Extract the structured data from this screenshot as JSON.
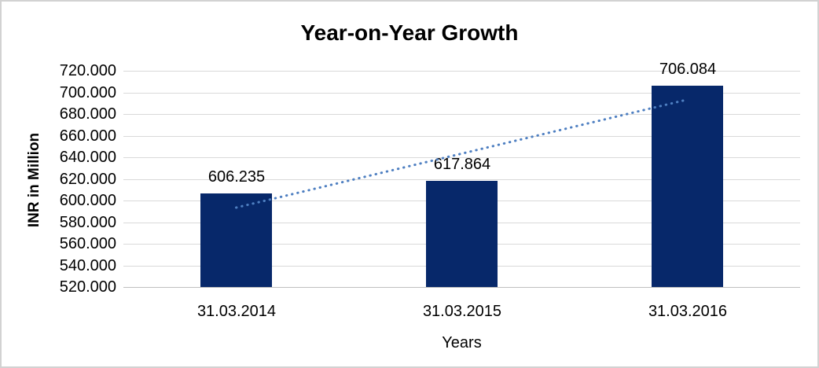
{
  "chart_data": {
    "type": "bar",
    "title": "Year-on-Year Growth",
    "xlabel": "Years",
    "ylabel": "INR in Million",
    "categories": [
      "31.03.2014",
      "31.03.2015",
      "31.03.2016"
    ],
    "values": [
      606.235,
      617.864,
      706.084
    ],
    "data_labels": [
      "606.235",
      "617.864",
      "706.084"
    ],
    "ylim": [
      520,
      720
    ],
    "ytick_step": 20,
    "ytick_labels": [
      "720.000",
      "700.000",
      "680.000",
      "660.000",
      "640.000",
      "620.000",
      "600.000",
      "580.000",
      "560.000",
      "540.000",
      "520.000"
    ],
    "grid": true,
    "legend": false,
    "trendline": {
      "type": "linear",
      "style": "dotted"
    },
    "colors": {
      "bar": "#07286A",
      "trendline": "#4E7FC1",
      "gridline": "#D9D9D9",
      "axis_line": "#C0C0C0",
      "text": "#000000",
      "background": "#FFFFFF",
      "border": "#D2D2D2"
    }
  }
}
